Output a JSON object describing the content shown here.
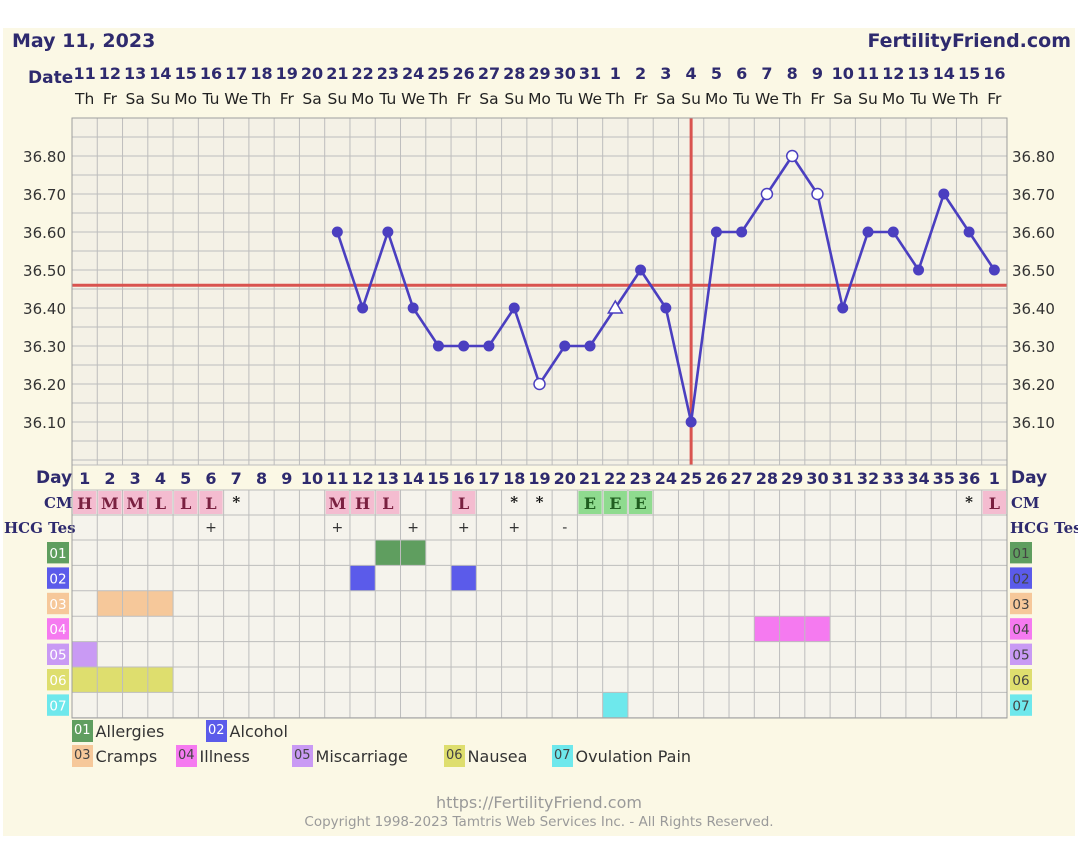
{
  "header": {
    "chart_date": "May 11, 2023",
    "site": "FertilityFriend.com",
    "date_label": "Date",
    "day_label": "Day",
    "cm_label": "CM",
    "hcg_label": "HCG Tes"
  },
  "chart_data": {
    "type": "line",
    "title": "",
    "xlabel": "Day",
    "ylabel": "",
    "ylim": [
      36.0,
      36.9
    ],
    "y_ticks": [
      "36.10",
      "36.20",
      "36.30",
      "36.40",
      "36.50",
      "36.60",
      "36.70",
      "36.80"
    ],
    "grid": true,
    "dates": [
      "11",
      "12",
      "13",
      "14",
      "15",
      "16",
      "17",
      "18",
      "19",
      "20",
      "21",
      "22",
      "23",
      "24",
      "25",
      "26",
      "27",
      "28",
      "29",
      "30",
      "31",
      "1",
      "2",
      "3",
      "4",
      "5",
      "6",
      "7",
      "8",
      "9",
      "10",
      "11",
      "12",
      "13",
      "14",
      "15",
      "16"
    ],
    "weekdays": [
      "Th",
      "Fr",
      "Sa",
      "Su",
      "Mo",
      "Tu",
      "We",
      "Th",
      "Fr",
      "Sa",
      "Su",
      "Mo",
      "Tu",
      "We",
      "Th",
      "Fr",
      "Sa",
      "Su",
      "Mo",
      "Tu",
      "We",
      "Th",
      "Fr",
      "Sa",
      "Su",
      "Mo",
      "Tu",
      "We",
      "Th",
      "Fr",
      "Sa",
      "Su",
      "Mo",
      "Tu",
      "We",
      "Th",
      "Fr"
    ],
    "cycle_days": [
      "1",
      "2",
      "3",
      "4",
      "5",
      "6",
      "7",
      "8",
      "9",
      "10",
      "11",
      "12",
      "13",
      "14",
      "15",
      "16",
      "17",
      "18",
      "19",
      "20",
      "21",
      "22",
      "23",
      "24",
      "25",
      "26",
      "27",
      "28",
      "29",
      "30",
      "31",
      "32",
      "33",
      "34",
      "35",
      "36",
      "1"
    ],
    "series": [
      {
        "points": [
          {
            "day": 11,
            "temp": 36.6,
            "marker": "filled"
          },
          {
            "day": 12,
            "temp": 36.4,
            "marker": "filled"
          },
          {
            "day": 13,
            "temp": 36.6,
            "marker": "filled"
          },
          {
            "day": 14,
            "temp": 36.4,
            "marker": "filled"
          },
          {
            "day": 15,
            "temp": 36.3,
            "marker": "filled"
          },
          {
            "day": 16,
            "temp": 36.3,
            "marker": "filled"
          },
          {
            "day": 17,
            "temp": 36.3,
            "marker": "filled"
          },
          {
            "day": 18,
            "temp": 36.4,
            "marker": "filled"
          },
          {
            "day": 19,
            "temp": 36.2,
            "marker": "open"
          },
          {
            "day": 20,
            "temp": 36.3,
            "marker": "filled"
          },
          {
            "day": 21,
            "temp": 36.3,
            "marker": "filled"
          },
          {
            "day": 22,
            "temp": 36.4,
            "marker": "triangle"
          },
          {
            "day": 23,
            "temp": 36.5,
            "marker": "filled"
          },
          {
            "day": 24,
            "temp": 36.4,
            "marker": "filled"
          },
          {
            "day": 25,
            "temp": 36.1,
            "marker": "filled"
          },
          {
            "day": 26,
            "temp": 36.6,
            "marker": "filled"
          },
          {
            "day": 27,
            "temp": 36.6,
            "marker": "filled"
          },
          {
            "day": 28,
            "temp": 36.7,
            "marker": "open"
          },
          {
            "day": 29,
            "temp": 36.8,
            "marker": "open"
          },
          {
            "day": 30,
            "temp": 36.7,
            "marker": "open"
          },
          {
            "day": 31,
            "temp": 36.4,
            "marker": "filled"
          },
          {
            "day": 32,
            "temp": 36.6,
            "marker": "filled"
          },
          {
            "day": 33,
            "temp": 36.6,
            "marker": "filled"
          },
          {
            "day": 34,
            "temp": 36.5,
            "marker": "filled"
          },
          {
            "day": 35,
            "temp": 36.7,
            "marker": "filled"
          },
          {
            "day": 36,
            "temp": 36.6,
            "marker": "filled"
          },
          {
            "day": 37,
            "temp": 36.5,
            "marker": "filled"
          }
        ]
      }
    ],
    "coverline": 36.46,
    "ovulation_day": 25,
    "cm": [
      {
        "day": 1,
        "code": "H",
        "type": "box"
      },
      {
        "day": 2,
        "code": "M",
        "type": "box"
      },
      {
        "day": 3,
        "code": "M",
        "type": "box"
      },
      {
        "day": 4,
        "code": "L",
        "type": "box"
      },
      {
        "day": 5,
        "code": "L",
        "type": "box"
      },
      {
        "day": 6,
        "code": "L",
        "type": "box"
      },
      {
        "day": 7,
        "code": "*",
        "type": "star"
      },
      {
        "day": 11,
        "code": "M",
        "type": "box"
      },
      {
        "day": 12,
        "code": "H",
        "type": "box"
      },
      {
        "day": 13,
        "code": "L",
        "type": "box"
      },
      {
        "day": 16,
        "code": "L",
        "type": "box"
      },
      {
        "day": 18,
        "code": "*",
        "type": "star"
      },
      {
        "day": 19,
        "code": "*",
        "type": "star"
      },
      {
        "day": 21,
        "code": "E",
        "type": "egg"
      },
      {
        "day": 22,
        "code": "E",
        "type": "egg"
      },
      {
        "day": 23,
        "code": "E",
        "type": "egg"
      },
      {
        "day": 36,
        "code": "*",
        "type": "star"
      },
      {
        "day": 37,
        "code": "L",
        "type": "box"
      }
    ],
    "hcg": [
      {
        "day": 6,
        "value": "+"
      },
      {
        "day": 11,
        "value": "+"
      },
      {
        "day": 14,
        "value": "+"
      },
      {
        "day": 16,
        "value": "+"
      },
      {
        "day": 18,
        "value": "+"
      },
      {
        "day": 20,
        "value": "-"
      }
    ],
    "symptom_rows": [
      "01",
      "02",
      "03",
      "04",
      "05",
      "06",
      "07"
    ],
    "symptom_marks": [
      {
        "row": "01",
        "days": [
          13,
          14
        ]
      },
      {
        "row": "02",
        "days": [
          12,
          16
        ]
      },
      {
        "row": "03",
        "days": [
          2,
          3,
          4
        ]
      },
      {
        "row": "04",
        "days": [
          28,
          29,
          30
        ]
      },
      {
        "row": "05",
        "days": [
          1
        ]
      },
      {
        "row": "06",
        "days": [
          1,
          2,
          3,
          4
        ]
      },
      {
        "row": "07",
        "days": [
          22
        ]
      }
    ]
  },
  "legend": [
    {
      "code": "01",
      "label": "Allergies",
      "color": "#5f9e5f"
    },
    {
      "code": "02",
      "label": "Alcohol",
      "color": "#5b5bea"
    },
    {
      "code": "03",
      "label": "Cramps",
      "color": "#f6c89a"
    },
    {
      "code": "04",
      "label": "Illness",
      "color": "#f57af0"
    },
    {
      "code": "05",
      "label": "Miscarriage",
      "color": "#c99af4"
    },
    {
      "code": "06",
      "label": "Nausea",
      "color": "#dede6e"
    },
    {
      "code": "07",
      "label": "Ovulation Pain",
      "color": "#6ee8ec"
    }
  ],
  "colors": {
    "line": "#4b3fc0",
    "coverline": "#d9534f",
    "ovulation": "#d9534f",
    "cm_box": "#f4bcd0",
    "cm_text": "#7a2040",
    "egg_box": "#8fdb8f",
    "egg_text": "#1f5e1f",
    "header_text": "#2e2a6e",
    "grid": "#bdbdbd",
    "cell_bg": "#f5f3ec"
  },
  "footer": {
    "url": "https://FertilityFriend.com",
    "copyright": "Copyright 1998-2023 Tamtris Web Services Inc. - All Rights Reserved."
  }
}
